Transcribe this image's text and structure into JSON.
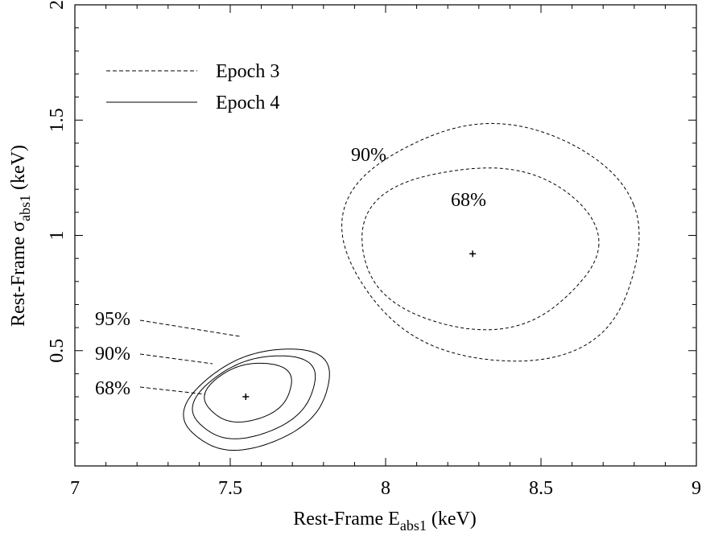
{
  "chart_data": {
    "type": "contour",
    "xlabel": "Rest-Frame E",
    "xlabel_sub": "abs1",
    "xlabel_unit": "(keV)",
    "ylabel": "Rest-Frame σ",
    "ylabel_sub": "abs1",
    "ylabel_unit": "(keV)",
    "xlim": [
      7,
      9
    ],
    "ylim": [
      0,
      2
    ],
    "x_ticks": [
      7,
      7.5,
      8,
      8.5,
      9
    ],
    "x_tick_labels": [
      "7",
      "7.5",
      "8",
      "8.5",
      "9"
    ],
    "y_ticks": [
      0.5,
      1,
      1.5,
      2
    ],
    "y_tick_labels": [
      "0.5",
      "1",
      "1.5",
      "2"
    ],
    "legend": {
      "placement": "top-left",
      "entries": [
        {
          "label": "Epoch 3",
          "style": "dashed"
        },
        {
          "label": "Epoch 4",
          "style": "solid"
        }
      ]
    },
    "series": [
      {
        "name": "Epoch 3",
        "style": "dashed",
        "best_fit": [
          8.28,
          0.92
        ],
        "contours": [
          {
            "level": "68%",
            "center": [
              8.3,
              0.95
            ],
            "semi_axis_x": 0.38,
            "semi_axis_y": 0.35,
            "rotation_deg": 0
          },
          {
            "level": "90%",
            "center": [
              8.35,
              0.97
            ],
            "semi_axis_x": 0.47,
            "semi_axis_y": 0.52,
            "rotation_deg": 20
          }
        ]
      },
      {
        "name": "Epoch 4",
        "style": "solid",
        "best_fit": [
          7.55,
          0.3
        ],
        "contours": [
          {
            "level": "68%",
            "center": [
              7.56,
              0.32
            ],
            "semi_axis_x": 0.15,
            "semi_axis_y": 0.115,
            "rotation_deg": 35
          },
          {
            "level": "90%",
            "center": [
              7.58,
              0.3
            ],
            "semi_axis_x": 0.22,
            "semi_axis_y": 0.15,
            "rotation_deg": 38
          },
          {
            "level": "95%",
            "center": [
              7.59,
              0.29
            ],
            "semi_axis_x": 0.265,
            "semi_axis_y": 0.18,
            "rotation_deg": 40
          }
        ]
      }
    ],
    "annotations": [
      {
        "text": "90%",
        "near": [
          8.05,
          1.42
        ]
      },
      {
        "text": "68%",
        "near": [
          8.27,
          1.16
        ]
      },
      {
        "text": "95%",
        "near": [
          7.25,
          0.68
        ]
      },
      {
        "text": "90%",
        "near": [
          7.23,
          0.55
        ]
      },
      {
        "text": "68%",
        "near": [
          7.23,
          0.4
        ]
      }
    ]
  }
}
